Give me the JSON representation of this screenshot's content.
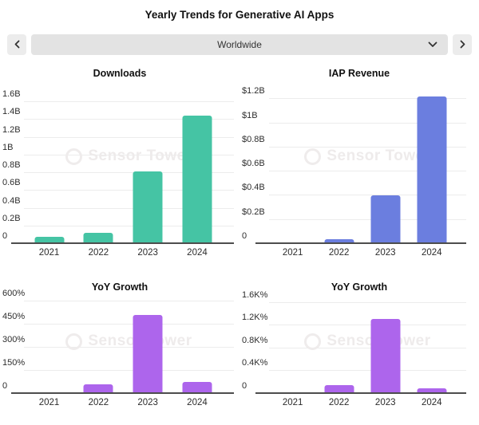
{
  "header": {
    "title": "Yearly Trends for Generative AI Apps"
  },
  "selector": {
    "value": "Worldwide",
    "previous_icon": "chevron-left",
    "next_icon": "chevron-right",
    "open_icon": "chevron-down"
  },
  "watermark": {
    "text": "Sensor Tower"
  },
  "colors": {
    "downloads_bar": "#45c4a4",
    "revenue_bar": "#6b7edf",
    "growth_bar": "#ad65ec",
    "axis": "#4d4d4d",
    "gridline": "#ececec"
  },
  "chart_data": [
    {
      "id": "downloads",
      "type": "bar",
      "title": "Downloads",
      "categories": [
        "2021",
        "2022",
        "2023",
        "2024"
      ],
      "values": [
        0.08,
        0.13,
        0.82,
        1.45
      ],
      "value_unit": "B",
      "color": "#45c4a4",
      "ylim": [
        0,
        1.8
      ],
      "grid": true,
      "yticks": [
        {
          "value": 0,
          "label": "0"
        },
        {
          "value": 0.2,
          "label": "0.2B"
        },
        {
          "value": 0.4,
          "label": "0.4B"
        },
        {
          "value": 0.6,
          "label": "0.6B"
        },
        {
          "value": 0.8,
          "label": "0.8B"
        },
        {
          "value": 1.0,
          "label": "1B"
        },
        {
          "value": 1.2,
          "label": "1.2B"
        },
        {
          "value": 1.4,
          "label": "1.4B"
        },
        {
          "value": 1.6,
          "label": "1.6B"
        }
      ]
    },
    {
      "id": "iap-revenue",
      "type": "bar",
      "title": "IAP Revenue",
      "categories": [
        "2021",
        "2022",
        "2023",
        "2024"
      ],
      "values": [
        0.01,
        0.04,
        0.4,
        1.22
      ],
      "value_unit": "$B",
      "color": "#6b7edf",
      "ylim": [
        0,
        1.32
      ],
      "grid": true,
      "yticks": [
        {
          "value": 0,
          "label": "0"
        },
        {
          "value": 0.2,
          "label": "$0.2B"
        },
        {
          "value": 0.4,
          "label": "$0.4B"
        },
        {
          "value": 0.6,
          "label": "$0.6B"
        },
        {
          "value": 0.8,
          "label": "$0.8B"
        },
        {
          "value": 1.0,
          "label": "$1B"
        },
        {
          "value": 1.2,
          "label": "$1.2B"
        }
      ]
    },
    {
      "id": "yoy-growth-downloads",
      "type": "bar",
      "title": "YoY Growth",
      "categories": [
        "2021",
        "2022",
        "2023",
        "2024"
      ],
      "values": [
        0,
        60,
        510,
        80
      ],
      "value_unit": "%",
      "color": "#ad65ec",
      "ylim": [
        0,
        620
      ],
      "grid": true,
      "yticks": [
        {
          "value": 0,
          "label": "0"
        },
        {
          "value": 150,
          "label": "150%"
        },
        {
          "value": 300,
          "label": "300%"
        },
        {
          "value": 450,
          "label": "450%"
        },
        {
          "value": 600,
          "label": "600%"
        }
      ]
    },
    {
      "id": "yoy-growth-revenue",
      "type": "bar",
      "title": "YoY Growth",
      "categories": [
        "2021",
        "2022",
        "2023",
        "2024"
      ],
      "values": [
        0,
        150,
        1310,
        100
      ],
      "value_unit": "%",
      "color": "#ad65ec",
      "ylim": [
        0,
        1680
      ],
      "grid": true,
      "yticks": [
        {
          "value": 0,
          "label": "0"
        },
        {
          "value": 400,
          "label": "0.4K%"
        },
        {
          "value": 800,
          "label": "0.8K%"
        },
        {
          "value": 1200,
          "label": "1.2K%"
        },
        {
          "value": 1600,
          "label": "1.6K%"
        }
      ]
    }
  ]
}
